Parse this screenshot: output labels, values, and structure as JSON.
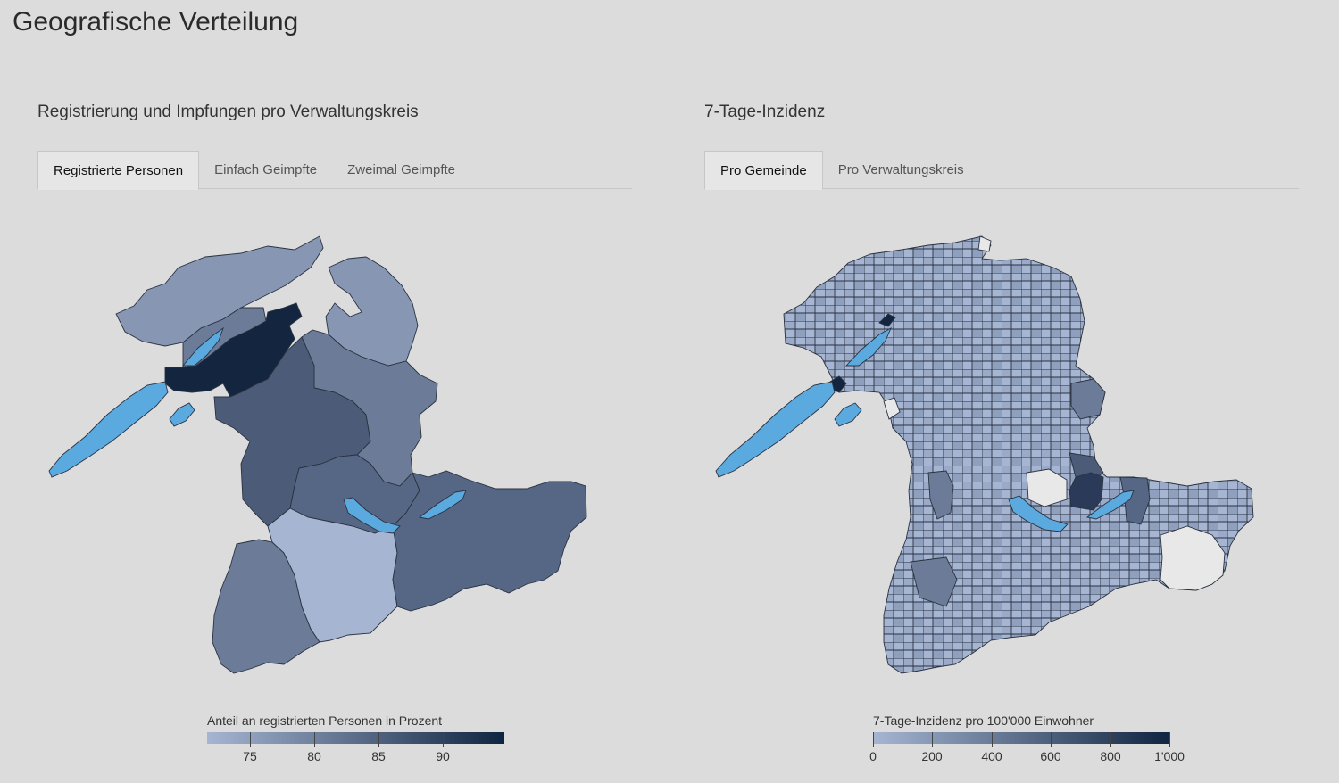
{
  "page": {
    "title": "Geografische Verteilung"
  },
  "left_panel": {
    "title": "Registrierung und Impfungen pro Verwaltungskreis",
    "tabs": [
      {
        "label": "Registrierte Personen",
        "active": true
      },
      {
        "label": "Einfach Geimpfte",
        "active": false
      },
      {
        "label": "Zweimal Geimpfte",
        "active": false
      }
    ],
    "legend": {
      "title": "Anteil an registrierten Personen in Prozent",
      "ticks": [
        "75",
        "80",
        "85",
        "90"
      ],
      "color_from": "#a6b6d2",
      "color_to": "#0f2440"
    }
  },
  "right_panel": {
    "title": "7-Tage-Inzidenz",
    "tabs": [
      {
        "label": "Pro Gemeinde",
        "active": true
      },
      {
        "label": "Pro Verwaltungskreis",
        "active": false
      }
    ],
    "legend": {
      "title": "7-Tage-Inzidenz pro 100'000 Einwohner",
      "ticks": [
        "0",
        "200",
        "400",
        "600",
        "800",
        "1'000"
      ],
      "color_from": "#a6b6d2",
      "color_to": "#0f2440"
    }
  },
  "colors": {
    "lake": "#5aa9df",
    "background": "#dcdcdc",
    "no_data": "#e8e8e8"
  }
}
